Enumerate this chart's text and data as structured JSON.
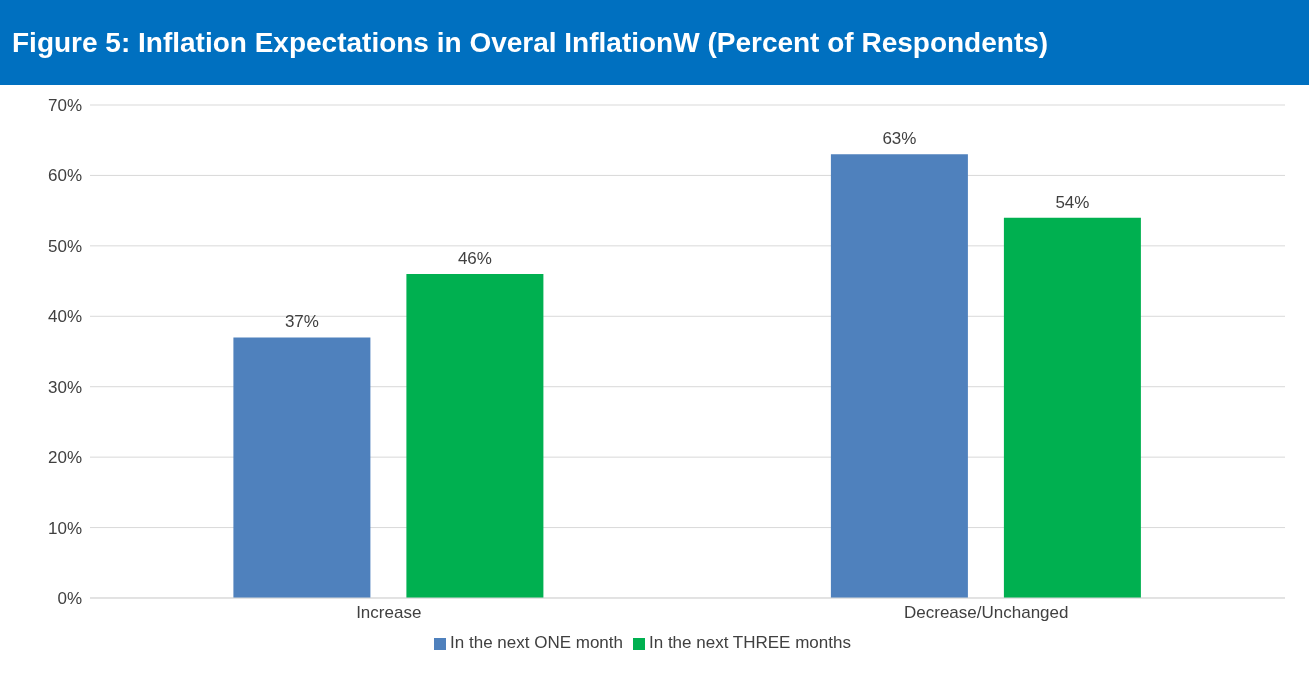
{
  "chart_data": {
    "type": "bar",
    "title": "Figure 5: Inflation Expectations in Overal InflationW (Percent of Respondents)",
    "categories": [
      "Increase",
      "Decrease/Unchanged"
    ],
    "series": [
      {
        "name": "In the next ONE month",
        "color": "#4f81bd",
        "values": [
          37,
          63
        ],
        "value_labels": [
          "37%",
          "63%"
        ]
      },
      {
        "name": "In the next THREE months",
        "color": "#00b050",
        "values": [
          46,
          54
        ],
        "value_labels": [
          "46%",
          "54%"
        ]
      }
    ],
    "ylim": [
      0,
      70
    ],
    "yticks": [
      {
        "value": 0,
        "label": "0%"
      },
      {
        "value": 10,
        "label": "10%"
      },
      {
        "value": 20,
        "label": "20%"
      },
      {
        "value": 30,
        "label": "30%"
      },
      {
        "value": 40,
        "label": "40%"
      },
      {
        "value": 50,
        "label": "50%"
      },
      {
        "value": 60,
        "label": "60%"
      },
      {
        "value": 70,
        "label": "70%"
      }
    ],
    "grid": "y",
    "legend": "bottom"
  }
}
